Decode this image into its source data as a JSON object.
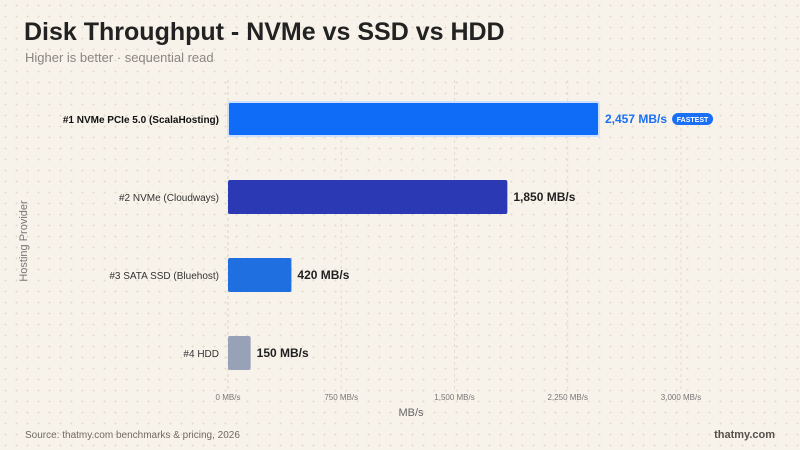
{
  "header": {
    "title": "Disk Throughput - NVMe vs SSD vs HDD",
    "subtitle": "Higher is better · sequential read"
  },
  "footer": {
    "source": "Source: thatmy.com benchmarks & pricing, 2026",
    "brand": "thatmy.com"
  },
  "colors": {
    "highlight": "#1a6ff5",
    "axis_text": "#777777"
  },
  "chart_data": {
    "type": "bar",
    "orientation": "horizontal",
    "title": "Disk Throughput - NVMe vs SSD vs HDD",
    "subtitle": "Higher is better · sequential read",
    "xlabel": "MB/s",
    "ylabel": "Hosting Provider",
    "xlim": [
      0,
      3000
    ],
    "xticks": [
      0,
      750,
      1500,
      2250,
      3000
    ],
    "xtick_labels": [
      "0 MB/s",
      "750 MB/s",
      "1,500 MB/s",
      "2,250 MB/s",
      "3,000 MB/s"
    ],
    "grid": true,
    "categories": [
      "#1  NVMe PCIe 5.0 (ScalaHosting)",
      "#2  NVMe (Cloudways)",
      "#3  SATA SSD (Bluehost)",
      "#4  HDD"
    ],
    "values": [
      2457,
      1850,
      420,
      150
    ],
    "value_labels": [
      "2,457 MB/s",
      "1,850 MB/s",
      "420 MB/s",
      "150 MB/s"
    ],
    "bar_colors": [
      "#0f6cf7",
      "#2c39b5",
      "#1f6fe0",
      "#97a2b6"
    ],
    "highlight_index": 0,
    "badge": "FASTEST"
  }
}
